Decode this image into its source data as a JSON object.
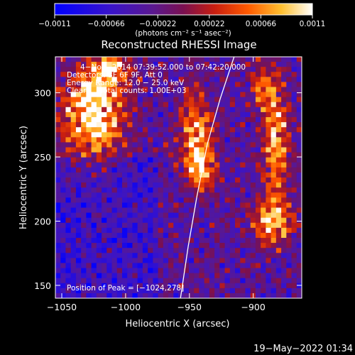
{
  "chart_data": {
    "type": "heatmap",
    "title": "Reconstructed RHESSI Image",
    "xlabel": "Heliocentric X (arcsec)",
    "ylabel": "Heliocentric Y (arcsec)",
    "xlim": [
      -1055,
      -862
    ],
    "ylim": [
      140,
      328
    ],
    "xticks": [
      -1050,
      -1000,
      -950,
      -900
    ],
    "xtick_labels": [
      "−1050",
      "−1000",
      "−950",
      "−900"
    ],
    "yticks": [
      150,
      200,
      250,
      300
    ],
    "ytick_labels": [
      "150",
      "200",
      "250",
      "300"
    ],
    "colorbar": {
      "range": [
        -0.0011,
        0.0011
      ],
      "ticks": [
        -0.0011,
        -0.00066,
        -0.00022,
        0.00022,
        0.00066,
        0.0011
      ],
      "tick_labels": [
        "−0.0011",
        "−0.00066",
        "−0.00022",
        "0.00022",
        "0.00066",
        "0.0011"
      ],
      "units": "(photons cm⁻² s⁻¹ asec⁻²)",
      "colormap": "blue-purple-red-yellow-white"
    },
    "annotations": [
      "4−Nov−2014 07:39:52.000 to 07:42:20.000",
      "Detectors: 3F 6F 9F, Att 0",
      "Energy Range: 12.0 − 25.0 keV",
      "Clean     Total counts: 1.00E+03"
    ],
    "peak_label": "Position of Peak = [−1024,278]",
    "peak": [
      -1024,
      278
    ],
    "limb_points": [
      [
        -957,
        140
      ],
      [
        -951,
        180
      ],
      [
        -944,
        220
      ],
      [
        -936,
        260
      ],
      [
        -926,
        295
      ],
      [
        -915,
        328
      ]
    ],
    "hotspots": [
      {
        "x": -1025,
        "y": 285,
        "sx": 16,
        "sy": 24,
        "amp": 1.0
      },
      {
        "x": -1010,
        "y": 318,
        "sx": 10,
        "sy": 8,
        "amp": 0.7
      },
      {
        "x": -945,
        "y": 268,
        "sx": 9,
        "sy": 22,
        "amp": 0.7
      },
      {
        "x": -940,
        "y": 240,
        "sx": 7,
        "sy": 12,
        "amp": 0.6
      },
      {
        "x": -885,
        "y": 200,
        "sx": 11,
        "sy": 12,
        "amp": 0.75
      },
      {
        "x": -882,
        "y": 260,
        "sx": 7,
        "sy": 32,
        "amp": 0.7
      },
      {
        "x": -893,
        "y": 305,
        "sx": 6,
        "sy": 12,
        "amp": 0.5
      }
    ]
  },
  "footer": {
    "timestamp": "19−May−2022 01:34"
  }
}
